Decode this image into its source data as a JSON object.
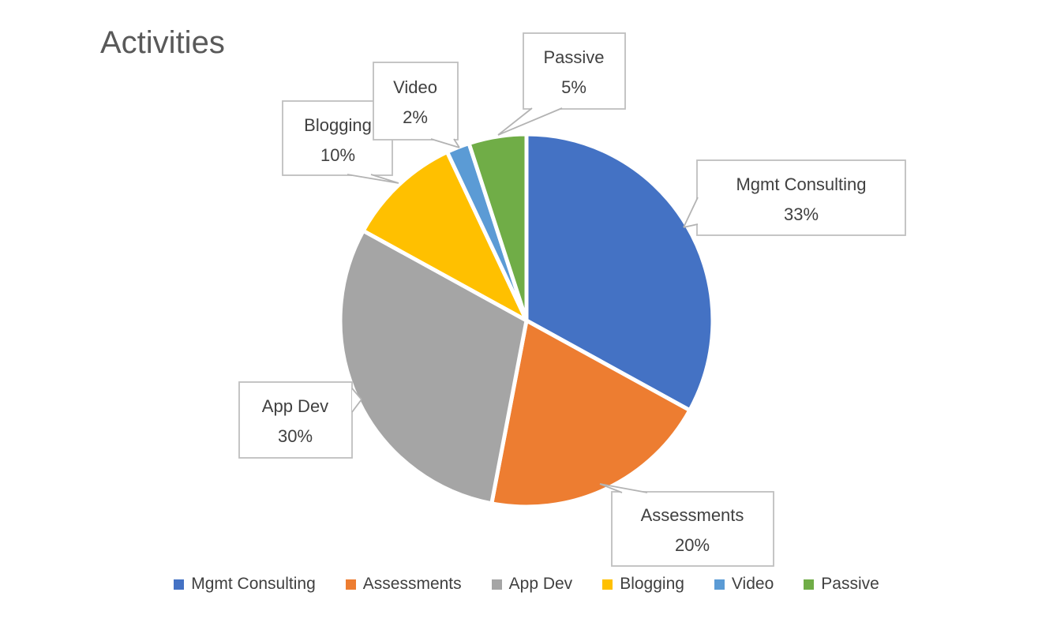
{
  "chart_data": {
    "type": "pie",
    "title": "Activities",
    "categories": [
      "Mgmt Consulting",
      "Assessments",
      "App Dev",
      "Blogging",
      "Video",
      "Passive"
    ],
    "values": [
      33,
      20,
      30,
      10,
      2,
      5
    ],
    "unit": "%",
    "percent_labels": [
      "33%",
      "20%",
      "30%",
      "10%",
      "2%",
      "5%"
    ],
    "colors": [
      "#4472C4",
      "#ED7D31",
      "#A5A5A5",
      "#FFC000",
      "#5B9BD5",
      "#70AD47"
    ],
    "start_angle_deg": 0,
    "direction": "clockwise",
    "slice_border_color": "#ffffff",
    "data_labels": [
      "Mgmt Consulting 33%",
      "Assessments 20%",
      "App Dev 30%",
      "Blogging 10%",
      "Video 2%",
      "Passive 5%"
    ],
    "legend_position": "bottom"
  },
  "legend": {
    "items": [
      {
        "label": "Mgmt Consulting",
        "color": "#4472C4"
      },
      {
        "label": "Assessments",
        "color": "#ED7D31"
      },
      {
        "label": "App Dev",
        "color": "#A5A5A5"
      },
      {
        "label": "Blogging",
        "color": "#FFC000"
      },
      {
        "label": "Video",
        "color": "#5B9BD5"
      },
      {
        "label": "Passive",
        "color": "#70AD47"
      }
    ]
  }
}
